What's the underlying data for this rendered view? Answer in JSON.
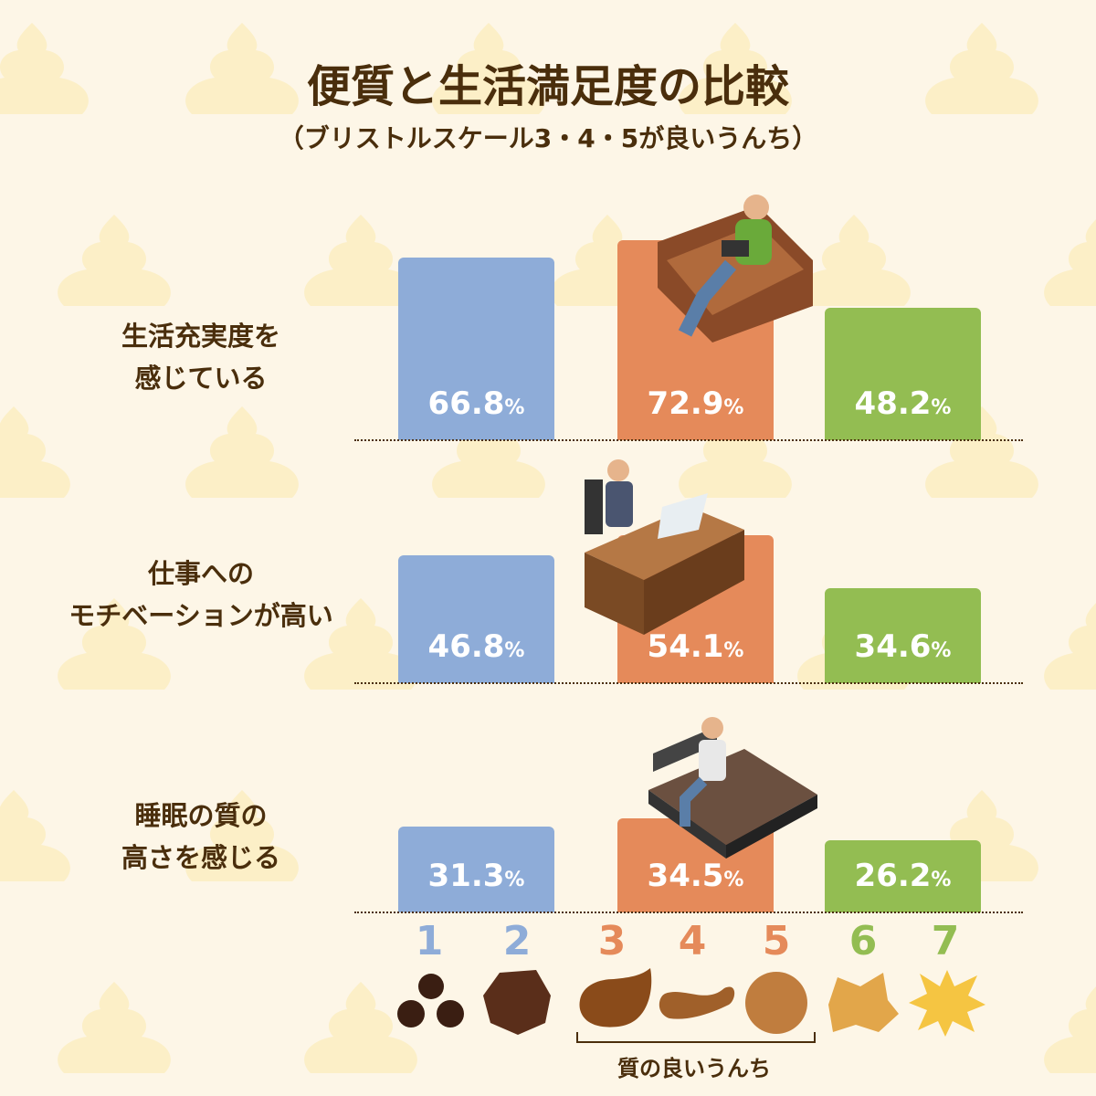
{
  "title": "便質と生活満足度の比較",
  "subtitle": "（ブリストルスケール3・4・5が良いうんち）",
  "colors": {
    "blue": "#8eacd8",
    "orange": "#e58a5a",
    "green": "#93bd52",
    "background": "#fdf6e7",
    "text": "#4a2e0c"
  },
  "chart_data": {
    "type": "bar",
    "categories": [
      "生活充実度を感じている",
      "仕事へのモチベーションが高い",
      "睡眠の質の高さを感じる"
    ],
    "category_lines": [
      [
        "生活充実度を",
        "感じている"
      ],
      [
        "仕事への",
        "モチベーションが高い"
      ],
      [
        "睡眠の質の",
        "高さを感じる"
      ]
    ],
    "series": [
      {
        "color": "#8eacd8",
        "values": [
          66.8,
          46.8,
          31.3
        ],
        "labels": [
          "66.8",
          "46.8",
          "31.3"
        ]
      },
      {
        "color": "#e58a5a",
        "values": [
          72.9,
          54.1,
          34.5
        ],
        "labels": [
          "72.9",
          "54.1",
          "34.5"
        ]
      },
      {
        "color": "#93bd52",
        "values": [
          48.2,
          34.6,
          26.2
        ],
        "labels": [
          "48.2",
          "34.6",
          "26.2"
        ]
      }
    ],
    "unit": "%"
  },
  "scale": {
    "numbers": [
      "1",
      "2",
      "3",
      "4",
      "5",
      "6",
      "7"
    ],
    "number_colors": [
      "#8eacd8",
      "#8eacd8",
      "#e58a5a",
      "#e58a5a",
      "#e58a5a",
      "#93bd52",
      "#93bd52"
    ],
    "stool_icons": [
      "separate-hard-lumps-icon",
      "lumpy-sausage-icon",
      "cracked-sausage-icon",
      "smooth-snake-icon",
      "soft-blobs-icon",
      "mushy-icon",
      "watery-icon"
    ],
    "good_label": "質の良いうんち"
  }
}
